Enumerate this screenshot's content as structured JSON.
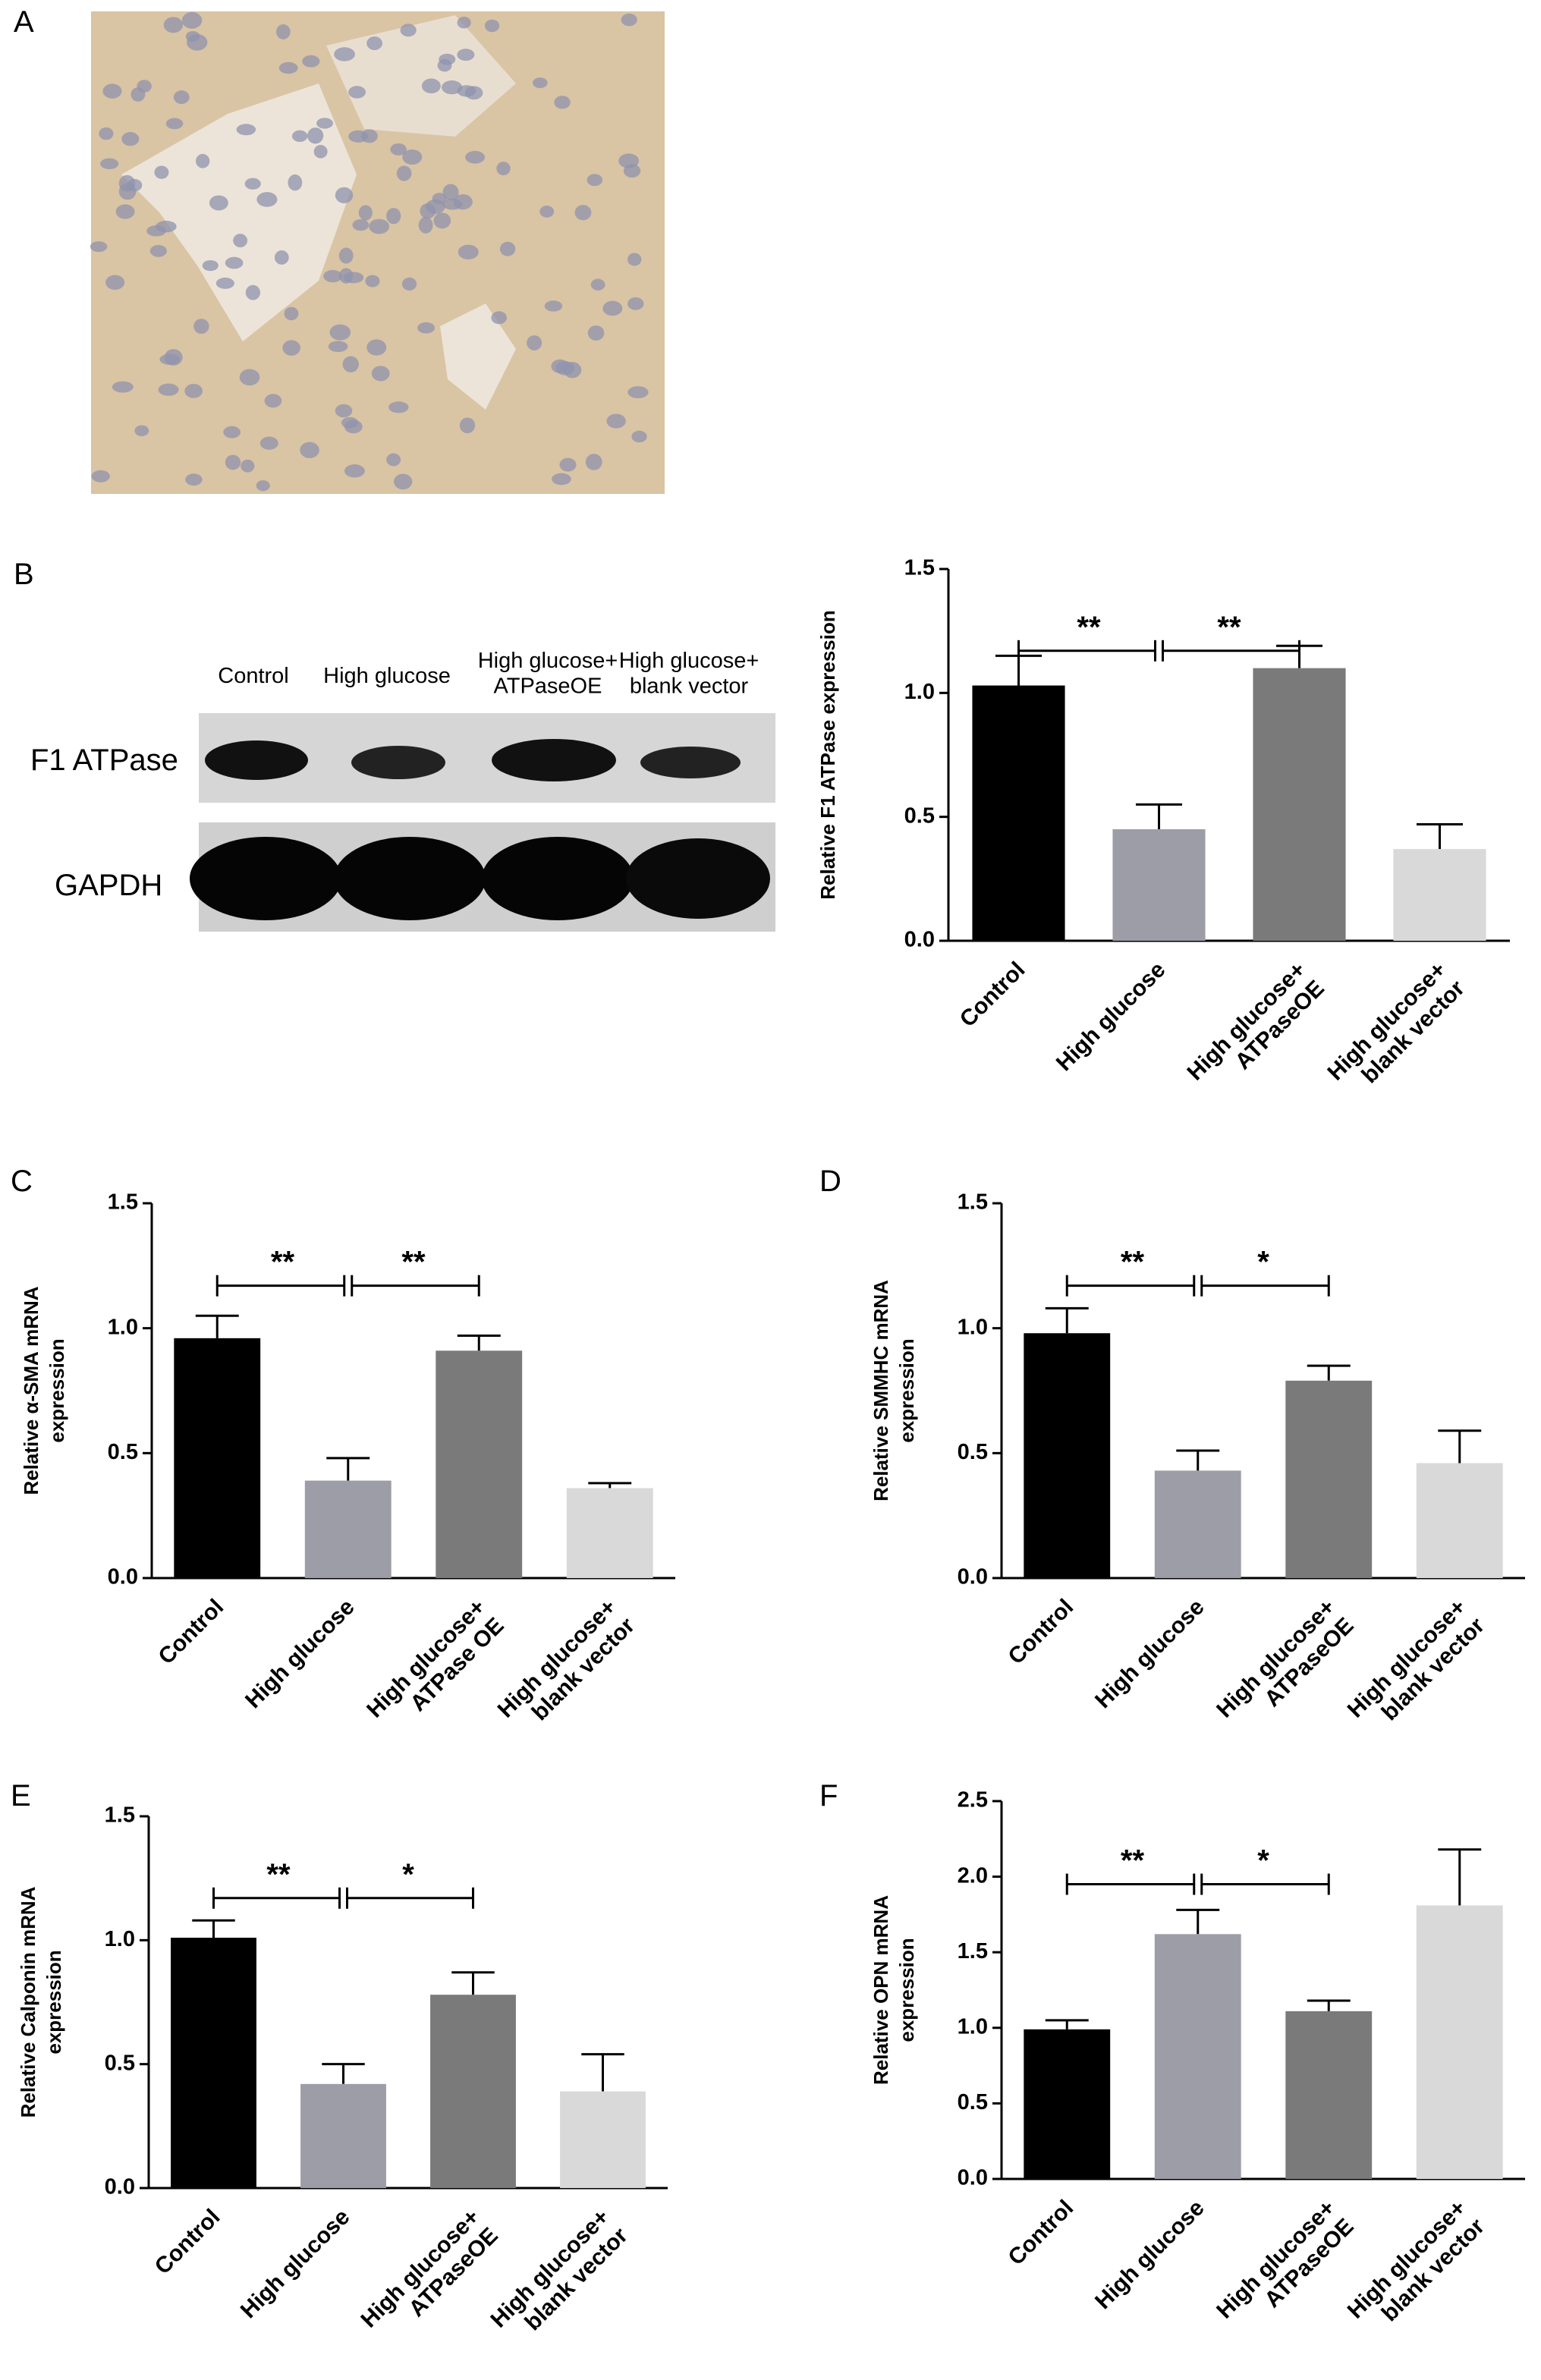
{
  "panel_labels": [
    "A",
    "B",
    "C",
    "D",
    "E",
    "F"
  ],
  "blot": {
    "lanes": [
      "Control",
      "High glucose",
      "High glucose+\nATPaseOE",
      "High glucose+\nblank vector"
    ],
    "rows": [
      "F1 ATPase",
      "GAPDH"
    ]
  },
  "chart_data": [
    {
      "type": "bar",
      "ylabel": [
        "Relative F1 ATPase expression"
      ],
      "categories": [
        "Control",
        "High glucose",
        "High glucose+\nATPaseOE",
        "High glucose+\nblank vector"
      ],
      "values": [
        1.03,
        0.45,
        1.1,
        0.37
      ],
      "errors": [
        0.12,
        0.1,
        0.09,
        0.1
      ],
      "colors": [
        "#000000",
        "#9d9da7",
        "#7a7a7a",
        "#d9d9d9"
      ],
      "ylim": [
        0,
        1.5
      ],
      "yticks": [
        {
          "value": 0,
          "label": "0.0"
        },
        {
          "value": 0.5,
          "label": "0.5"
        },
        {
          "value": 1,
          "label": "1.0"
        },
        {
          "value": 1.5,
          "label": "1.5"
        }
      ],
      "annotations": [
        "**",
        "**"
      ]
    },
    {
      "type": "bar",
      "ylabel": [
        "Relative α-SMA mRNA",
        "expression"
      ],
      "categories": [
        "Control",
        "High glucose",
        "High glucose+\nATPase OE",
        "High glucose+\nblank vector"
      ],
      "values": [
        0.96,
        0.39,
        0.91,
        0.36
      ],
      "errors": [
        0.09,
        0.09,
        0.06,
        0.02
      ],
      "colors": [
        "#000000",
        "#9d9da7",
        "#7a7a7a",
        "#d9d9d9"
      ],
      "ylim": [
        0,
        1.5
      ],
      "yticks": [
        {
          "value": 0,
          "label": "0.0"
        },
        {
          "value": 0.5,
          "label": "0.5"
        },
        {
          "value": 1,
          "label": "1.0"
        },
        {
          "value": 1.5,
          "label": "1.5"
        }
      ],
      "annotations": [
        "**",
        "**"
      ]
    },
    {
      "type": "bar",
      "ylabel": [
        "Relative SMMHC mRNA",
        "expression"
      ],
      "categories": [
        "Control",
        "High glucose",
        "High glucose+\nATPaseOE",
        "High glucose+\nblank vector"
      ],
      "values": [
        0.98,
        0.43,
        0.79,
        0.46
      ],
      "errors": [
        0.1,
        0.08,
        0.06,
        0.13
      ],
      "colors": [
        "#000000",
        "#9d9da7",
        "#7a7a7a",
        "#d9d9d9"
      ],
      "ylim": [
        0,
        1.5
      ],
      "yticks": [
        {
          "value": 0,
          "label": "0.0"
        },
        {
          "value": 0.5,
          "label": "0.5"
        },
        {
          "value": 1,
          "label": "1.0"
        },
        {
          "value": 1.5,
          "label": "1.5"
        }
      ],
      "annotations": [
        "**",
        "*"
      ]
    },
    {
      "type": "bar",
      "ylabel": [
        "Relative Calponin mRNA",
        "expression"
      ],
      "categories": [
        "Control",
        "High glucose",
        "High glucose+\nATPaseOE",
        "High glucose+\nblank vector"
      ],
      "values": [
        1.01,
        0.42,
        0.78,
        0.39
      ],
      "errors": [
        0.07,
        0.08,
        0.09,
        0.15
      ],
      "colors": [
        "#000000",
        "#9d9da7",
        "#7a7a7a",
        "#d9d9d9"
      ],
      "ylim": [
        0,
        1.5
      ],
      "yticks": [
        {
          "value": 0,
          "label": "0.0"
        },
        {
          "value": 0.5,
          "label": "0.5"
        },
        {
          "value": 1,
          "label": "1.0"
        },
        {
          "value": 1.5,
          "label": "1.5"
        }
      ],
      "annotations": [
        "**",
        "*"
      ]
    },
    {
      "type": "bar",
      "ylabel": [
        "Relative OPN mRNA",
        "expression"
      ],
      "categories": [
        "Control",
        "High glucose",
        "High glucose+\nATPaseOE",
        "High glucose+\nblank vector"
      ],
      "values": [
        0.99,
        1.62,
        1.11,
        1.81
      ],
      "errors": [
        0.06,
        0.16,
        0.07,
        0.37
      ],
      "colors": [
        "#000000",
        "#9d9da7",
        "#7a7a7a",
        "#d9d9d9"
      ],
      "ylim": [
        0,
        2.5
      ],
      "yticks": [
        {
          "value": 0,
          "label": "0.0"
        },
        {
          "value": 0.5,
          "label": "0.5"
        },
        {
          "value": 1,
          "label": "1.0"
        },
        {
          "value": 1.5,
          "label": "1.5"
        },
        {
          "value": 2,
          "label": "2.0"
        },
        {
          "value": 2.5,
          "label": "2.5"
        }
      ],
      "annotations": [
        "**",
        "*"
      ]
    }
  ]
}
